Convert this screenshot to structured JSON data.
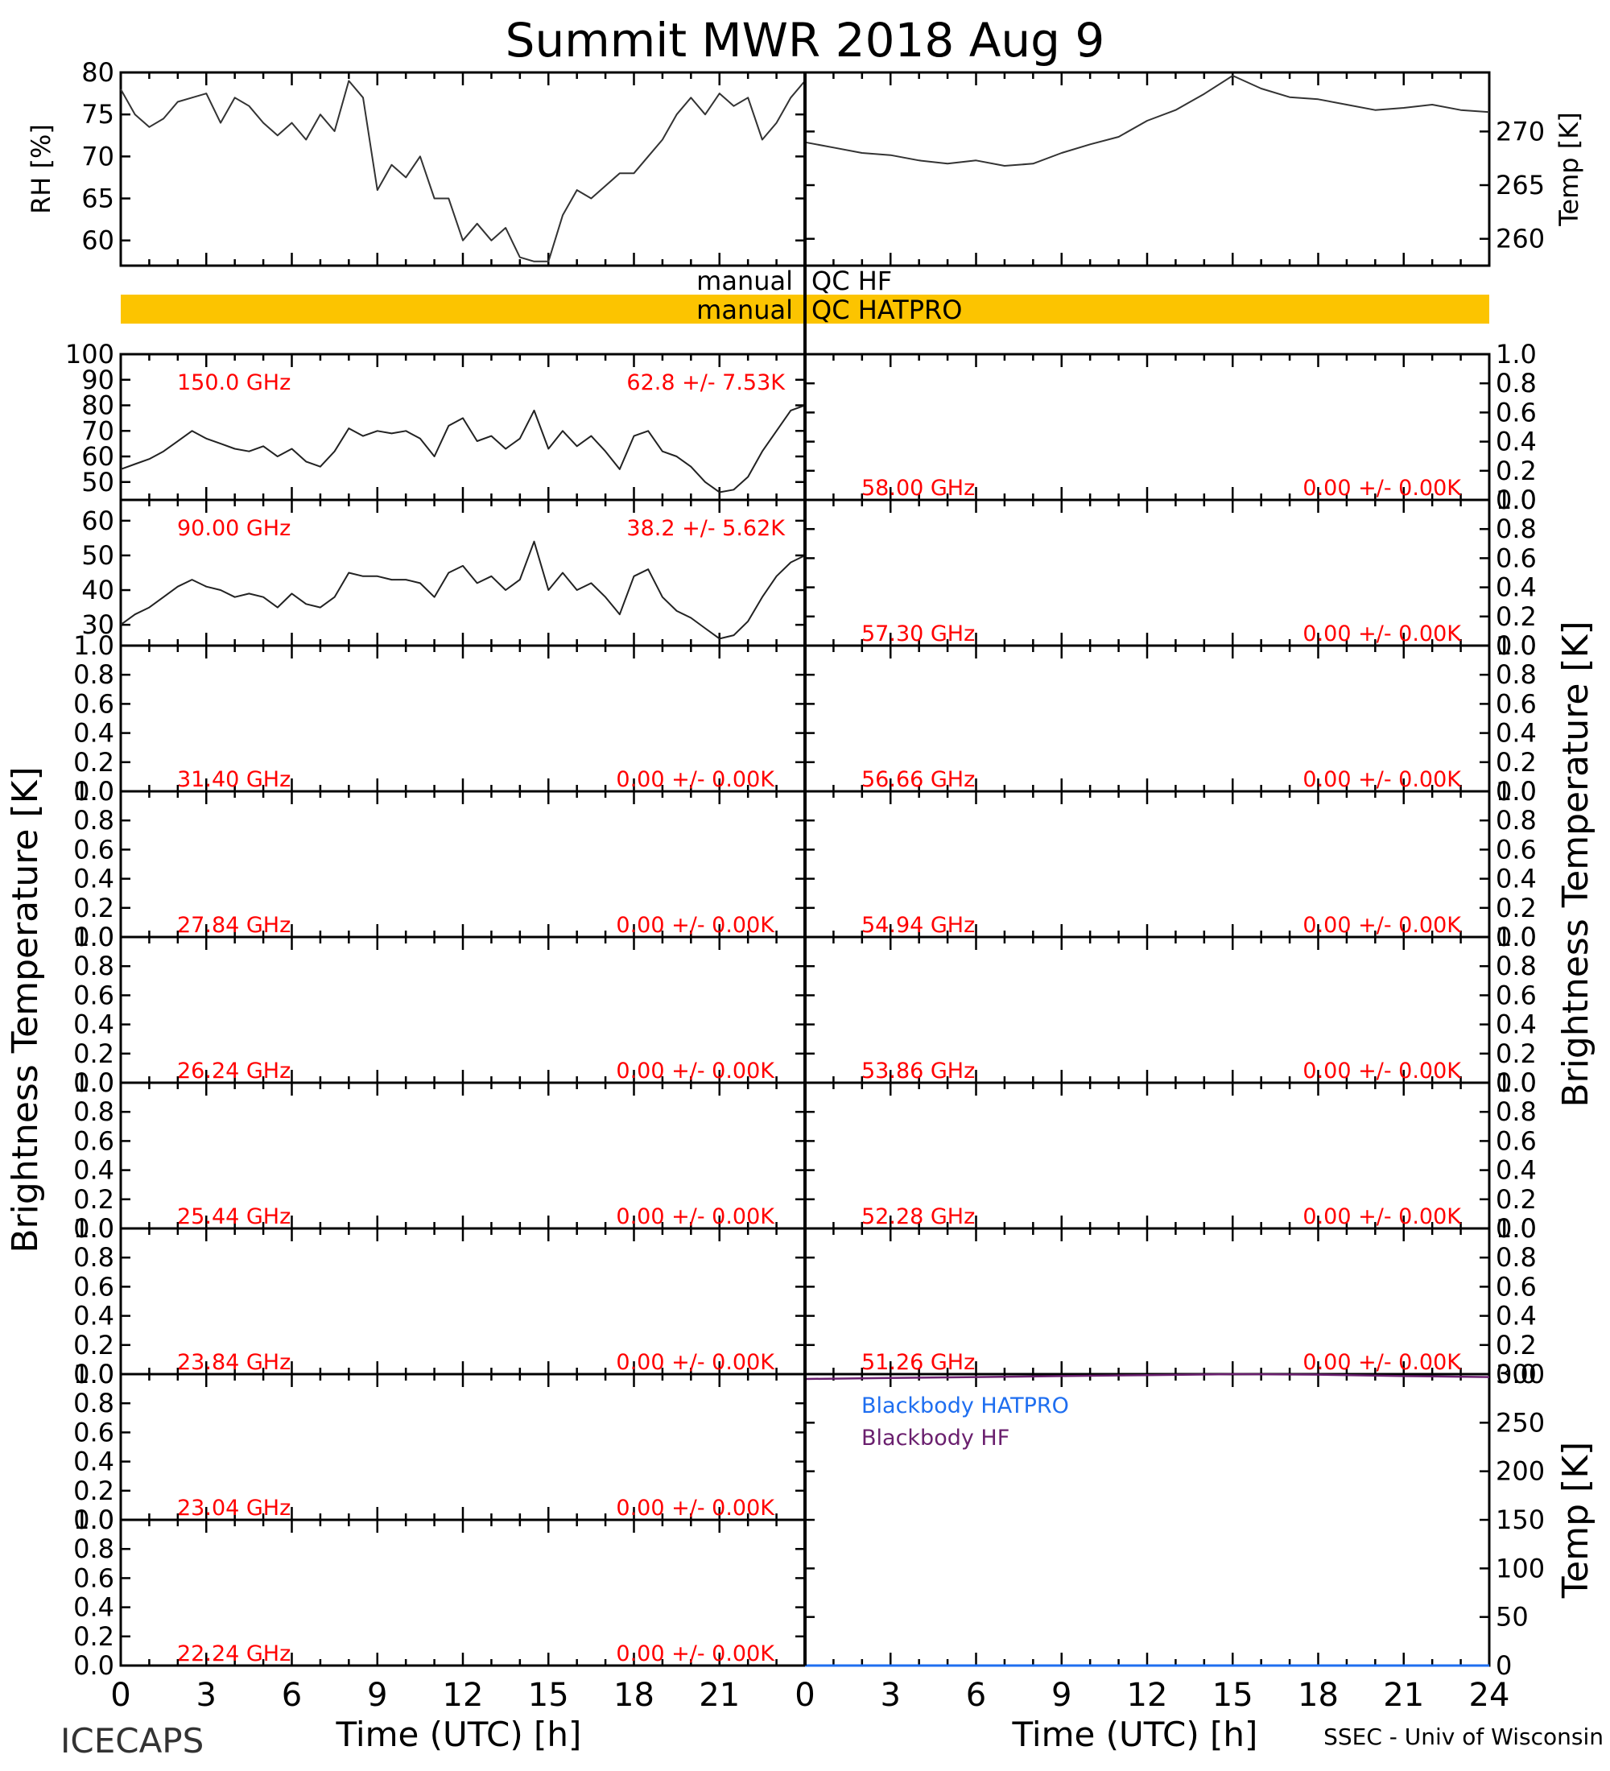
{
  "title": "Summit MWR 2018 Aug  9",
  "colors": {
    "axis": "#000000",
    "label": "#ff0000",
    "qc_band": "#fcc400",
    "blackbody_hatpro": "#1e6ef0",
    "blackbody_hf": "#6a1f6e"
  },
  "chart_data": [
    {
      "id": "rh",
      "type": "line",
      "ylabel": "RH [%]",
      "xlim": [
        0,
        24
      ],
      "ylim": [
        57,
        80
      ],
      "yticks": [
        "80",
        "75",
        "70",
        "65",
        "60"
      ],
      "x": [
        0,
        0.5,
        1,
        1.5,
        2,
        2.5,
        3,
        3.5,
        4,
        4.5,
        5,
        5.5,
        6,
        6.5,
        7,
        7.5,
        8,
        8.5,
        9,
        9.5,
        10,
        10.5,
        11,
        11.5,
        12,
        12.5,
        13,
        13.5,
        14,
        14.5,
        15,
        15.5,
        16,
        16.5,
        17,
        17.5,
        18,
        18.5,
        19,
        19.5,
        20,
        20.5,
        21,
        21.5,
        22,
        22.5,
        23,
        23.5,
        24
      ],
      "values": [
        78,
        75,
        73.5,
        74.5,
        76.5,
        77,
        77.5,
        74,
        77,
        76,
        74,
        72.5,
        74,
        72,
        75,
        73,
        79,
        77,
        66,
        69,
        67.5,
        70,
        65,
        65,
        60,
        62,
        60,
        61.5,
        58,
        57.5,
        57.5,
        63,
        66,
        65,
        66.5,
        68,
        68,
        70,
        72,
        75,
        77,
        75,
        77.5,
        76,
        77,
        72,
        74,
        77,
        79
      ]
    },
    {
      "id": "temp",
      "type": "line",
      "ylabel": "Temp [K]",
      "xlim": [
        0,
        24
      ],
      "ylim": [
        257.5,
        275.5
      ],
      "yticks": [
        "270",
        "265",
        "260"
      ],
      "x": [
        0,
        1,
        2,
        3,
        4,
        5,
        6,
        7,
        8,
        9,
        10,
        11,
        12,
        13,
        14,
        15,
        16,
        17,
        18,
        19,
        20,
        21,
        22,
        23,
        24
      ],
      "values": [
        269,
        268.5,
        268,
        267.8,
        267.3,
        267,
        267.3,
        266.8,
        267,
        268,
        268.8,
        269.5,
        271,
        272,
        273.5,
        275.2,
        274,
        273.2,
        273,
        272.5,
        272,
        272.2,
        272.5,
        272,
        271.8
      ]
    },
    {
      "id": "tb150",
      "type": "line",
      "freq_label": "150.0 GHz",
      "stat_label": "62.8 +/-  7.53K",
      "ylim": [
        43,
        100
      ],
      "yticks": [
        "100",
        "90",
        "80",
        "70",
        "60",
        "50"
      ],
      "x": [
        0,
        0.5,
        1,
        1.5,
        2,
        2.5,
        3,
        3.5,
        4,
        4.5,
        5,
        5.5,
        6,
        6.5,
        7,
        7.5,
        8,
        8.5,
        9,
        9.5,
        10,
        10.5,
        11,
        11.5,
        12,
        12.5,
        13,
        13.5,
        14,
        14.5,
        15,
        15.5,
        16,
        16.5,
        17,
        17.5,
        18,
        18.5,
        19,
        19.5,
        20,
        20.5,
        21,
        21.5,
        22,
        22.5,
        23,
        23.5,
        24
      ],
      "values": [
        55,
        57,
        59,
        62,
        66,
        70,
        67,
        65,
        63,
        62,
        64,
        60,
        63,
        58,
        56,
        62,
        71,
        68,
        70,
        69,
        70,
        67,
        60,
        72,
        75,
        66,
        68,
        63,
        67,
        78,
        63,
        70,
        64,
        68,
        62,
        55,
        68,
        70,
        62,
        60,
        56,
        50,
        46,
        47,
        52,
        62,
        70,
        78,
        80
      ]
    },
    {
      "id": "tb90",
      "type": "line",
      "freq_label": "90.00 GHz",
      "stat_label": "38.2 +/-  5.62K",
      "ylim": [
        24,
        66
      ],
      "yticks": [
        "60",
        "50",
        "40",
        "30"
      ],
      "x": [
        0,
        0.5,
        1,
        1.5,
        2,
        2.5,
        3,
        3.5,
        4,
        4.5,
        5,
        5.5,
        6,
        6.5,
        7,
        7.5,
        8,
        8.5,
        9,
        9.5,
        10,
        10.5,
        11,
        11.5,
        12,
        12.5,
        13,
        13.5,
        14,
        14.5,
        15,
        15.5,
        16,
        16.5,
        17,
        17.5,
        18,
        18.5,
        19,
        19.5,
        20,
        20.5,
        21,
        21.5,
        22,
        22.5,
        23,
        23.5,
        24
      ],
      "values": [
        30,
        33,
        35,
        38,
        41,
        43,
        41,
        40,
        38,
        39,
        38,
        35,
        39,
        36,
        35,
        38,
        45,
        44,
        44,
        43,
        43,
        42,
        38,
        45,
        47,
        42,
        44,
        40,
        43,
        54,
        40,
        45,
        40,
        42,
        38,
        33,
        44,
        46,
        38,
        34,
        32,
        29,
        26,
        27,
        31,
        38,
        44,
        48,
        50
      ]
    }
  ],
  "qc": {
    "hf_left": "manual",
    "hf_right": "QC HF",
    "hatpro_left": "manual",
    "hatpro_right": "QC HATPRO"
  },
  "unit_ticks": [
    "1.0",
    "0.8",
    "0.6",
    "0.4",
    "0.2",
    "0.0"
  ],
  "left_panels": [
    {
      "freq": "31.40 GHz",
      "stat": "0.00 +/-  0.00K"
    },
    {
      "freq": "27.84 GHz",
      "stat": "0.00 +/-  0.00K"
    },
    {
      "freq": "26.24 GHz",
      "stat": "0.00 +/-  0.00K"
    },
    {
      "freq": "25.44 GHz",
      "stat": "0.00 +/-  0.00K"
    },
    {
      "freq": "23.84 GHz",
      "stat": "0.00 +/-  0.00K"
    },
    {
      "freq": "23.04 GHz",
      "stat": "0.00 +/-  0.00K"
    },
    {
      "freq": "22.24 GHz",
      "stat": "0.00 +/-  0.00K"
    }
  ],
  "right_panels": [
    {
      "freq": "58.00 GHz",
      "stat": "0.00 +/-  0.00K"
    },
    {
      "freq": "57.30 GHz",
      "stat": "0.00 +/-  0.00K"
    },
    {
      "freq": "56.66 GHz",
      "stat": "0.00 +/-  0.00K"
    },
    {
      "freq": "54.94 GHz",
      "stat": "0.00 +/-  0.00K"
    },
    {
      "freq": "53.86 GHz",
      "stat": "0.00 +/-  0.00K"
    },
    {
      "freq": "52.28 GHz",
      "stat": "0.00 +/-  0.00K"
    },
    {
      "freq": "51.26 GHz",
      "stat": "0.00 +/-  0.00K"
    }
  ],
  "blackbody": {
    "ylabel": "Temp [K]",
    "ylim": [
      0,
      300
    ],
    "yticks": [
      "300",
      "250",
      "200",
      "150",
      "100",
      "50",
      "0"
    ],
    "legend_hatpro": "Blackbody HATPRO",
    "legend_hf": "Blackbody HF",
    "hf_x": [
      0,
      3,
      6,
      9,
      12,
      15,
      18,
      21,
      24
    ],
    "hf_values": [
      295,
      296,
      297,
      298,
      299,
      300,
      299.5,
      298,
      297
    ],
    "hatpro_x": [
      0,
      24
    ],
    "hatpro_values": [
      0,
      0
    ]
  },
  "ylabel_tb": "Brightness Temperature [K]",
  "xaxis": {
    "ticks": [
      "0",
      "3",
      "6",
      "9",
      "12",
      "15",
      "18",
      "21",
      "24"
    ],
    "left_ticks": [
      "0",
      "3",
      "6",
      "9",
      "12",
      "15",
      "18",
      "21"
    ],
    "label": "Time (UTC) [h]"
  },
  "footer_left": "ICECAPS",
  "footer_right": "SSEC - Univ of Wisconsin"
}
